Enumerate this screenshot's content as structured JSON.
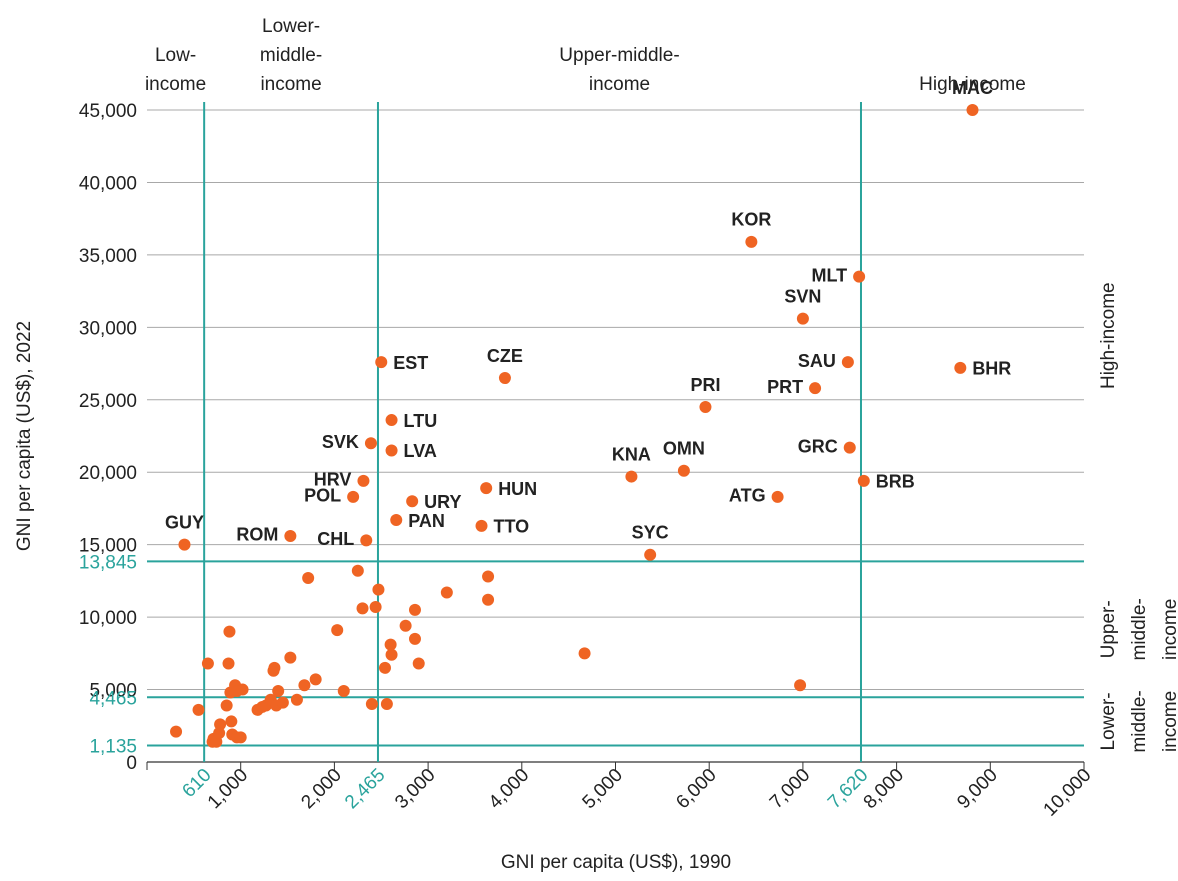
{
  "chart_data": {
    "type": "scatter",
    "x_label": "GNI per capita (US$), 1990",
    "y_label": "GNI per capita (US$), 2022",
    "color": "#ef6423",
    "threshold_color": "#2aa39c",
    "grid": true,
    "xlim": [
      0,
      10000
    ],
    "ylim": [
      0,
      45000
    ],
    "xticks": [
      {
        "value": 1000,
        "label": "1,000"
      },
      {
        "value": 2000,
        "label": "2,000"
      },
      {
        "value": 3000,
        "label": "3,000"
      },
      {
        "value": 4000,
        "label": "4,000"
      },
      {
        "value": 5000,
        "label": "5,000"
      },
      {
        "value": 6000,
        "label": "6,000"
      },
      {
        "value": 7000,
        "label": "7,000"
      },
      {
        "value": 8000,
        "label": "8,000"
      },
      {
        "value": 9000,
        "label": "9,000"
      },
      {
        "value": 10000,
        "label": "10,000"
      }
    ],
    "yticks": [
      0,
      {
        "value": 5000,
        "label": "5,000"
      },
      {
        "value": 10000,
        "label": "10,000"
      },
      {
        "value": 15000,
        "label": "15,000"
      },
      {
        "value": 20000,
        "label": "20,000"
      },
      {
        "value": 25000,
        "label": "25,000"
      },
      {
        "value": 30000,
        "label": "30,000"
      },
      {
        "value": 35000,
        "label": "35,000"
      },
      {
        "value": 40000,
        "label": "40,000"
      },
      {
        "value": 45000,
        "label": "45,000"
      }
    ],
    "x_thresholds": [
      610,
      {
        "value": 2465,
        "label": "2,465"
      },
      {
        "value": 7620,
        "label": "7,620"
      }
    ],
    "y_thresholds": [
      {
        "value": 1135,
        "label": "1,135"
      },
      {
        "value": 4465,
        "label": "4,465"
      },
      {
        "value": 13845,
        "label": "13,845"
      }
    ],
    "x_groups": [
      [
        "Low-",
        "income"
      ],
      [
        "Lower-",
        "middle-",
        "income"
      ],
      [
        "Upper-middle-",
        "income"
      ],
      [
        "High-income"
      ]
    ],
    "y_groups": [
      [
        "Lower-",
        "middle-",
        "income"
      ],
      [
        "Upper-",
        "middle-",
        "income"
      ],
      [
        "High-income"
      ]
    ],
    "series": [
      {
        "labels": [
          "GUY",
          "ROM",
          "CHL",
          "POL",
          "HRV",
          "SVK",
          "LTU",
          "LVA",
          "EST",
          "CZE",
          "URY",
          "PAN",
          "HUN",
          "TTO",
          "KNA",
          "OMN",
          "PRI",
          "SYC",
          "KOR",
          "SVN",
          "MLT",
          "SAU",
          "PRT",
          "GRC",
          "ATG",
          "BRB",
          "BHR",
          "MAC",
          null,
          null,
          null,
          null,
          null,
          null,
          null,
          null,
          null,
          null,
          null,
          null,
          null,
          null,
          null,
          null,
          null,
          null,
          null,
          null,
          null,
          null,
          null,
          null,
          null,
          null,
          null,
          null,
          null,
          null,
          null,
          null,
          null,
          null,
          null,
          null,
          null,
          null,
          null,
          null,
          null,
          null,
          null,
          null,
          null,
          null,
          null,
          null,
          null,
          null,
          null,
          null,
          null
        ],
        "x": [
          400,
          1530,
          2340,
          2200,
          2310,
          2390,
          2610,
          2610,
          2500,
          3820,
          2830,
          2660,
          3620,
          3570,
          5170,
          5730,
          5960,
          5370,
          6450,
          7000,
          7600,
          7480,
          7130,
          7500,
          6730,
          7650,
          8680,
          8810,
          310,
          550,
          650,
          710,
          700,
          740,
          770,
          780,
          850,
          870,
          880,
          890,
          900,
          910,
          940,
          960,
          960,
          1000,
          1020,
          1180,
          1230,
          1270,
          1320,
          1350,
          1360,
          1380,
          1400,
          1450,
          1530,
          1600,
          1680,
          1720,
          1800,
          2030,
          2100,
          2250,
          2300,
          2400,
          2440,
          2470,
          2540,
          2560,
          2600,
          2610,
          2760,
          2860,
          2860,
          2900,
          3200,
          3640,
          3640,
          4670,
          6970
        ],
        "values": [
          15000,
          15600,
          15300,
          18300,
          19400,
          22000,
          23600,
          21500,
          27600,
          26500,
          18000,
          16700,
          18900,
          16300,
          19700,
          20100,
          24500,
          14300,
          35900,
          30600,
          33500,
          27600,
          25800,
          21700,
          18300,
          19400,
          27200,
          45000,
          2100,
          3600,
          6800,
          1600,
          1400,
          1400,
          2000,
          2600,
          3900,
          6800,
          9000,
          4800,
          2800,
          1900,
          5300,
          4900,
          1700,
          1700,
          5000,
          3600,
          3800,
          3900,
          4300,
          6300,
          6500,
          3900,
          4900,
          4100,
          7200,
          4300,
          5300,
          12700,
          5700,
          9100,
          4900,
          13200,
          10600,
          4000,
          10700,
          11900,
          6500,
          4000,
          8100,
          7400,
          9400,
          10500,
          8500,
          6800,
          11700,
          12800,
          11200,
          7500,
          5300
        ]
      }
    ]
  }
}
